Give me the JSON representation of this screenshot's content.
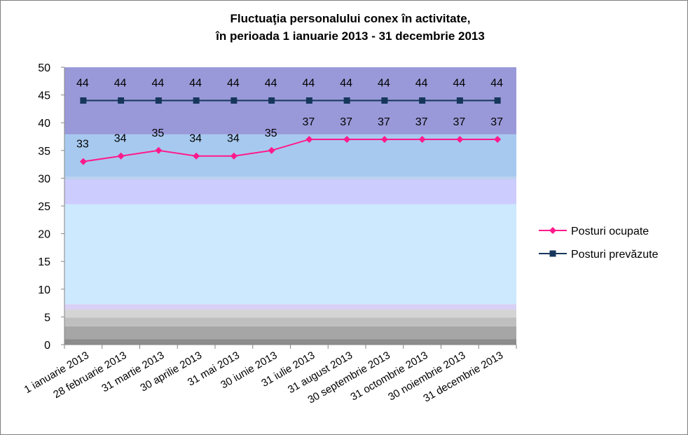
{
  "chart_data": {
    "type": "line",
    "title_line1": "Fluctuaţia personalului conex în activitate,",
    "title_line2": "în perioada 1 ianuarie 2013 - 31 decembrie 2013",
    "categories": [
      "1 ianuarie 2013",
      "28 februarie 2013",
      "31 martie 2013",
      "30 aprilie 2013",
      "31 mai 2013",
      "30 iunie 2013",
      "31 iulie 2013",
      "31 august 2013",
      "30 septembrie 2013",
      "31 octombrie 2013",
      "30 noiembrie 2013",
      "31 decembrie 2013"
    ],
    "series": [
      {
        "name": "Posturi ocupate",
        "values": [
          33,
          34,
          35,
          34,
          34,
          35,
          37,
          37,
          37,
          37,
          37,
          37
        ],
        "color": "#ff1a8c",
        "marker": "diamond"
      },
      {
        "name": "Posturi prevăzute",
        "values": [
          44,
          44,
          44,
          44,
          44,
          44,
          44,
          44,
          44,
          44,
          44,
          44
        ],
        "color": "#16365c",
        "marker": "square"
      }
    ],
    "ylim": [
      0,
      50
    ],
    "yticks": [
      0,
      5,
      10,
      15,
      20,
      25,
      30,
      35,
      40,
      45,
      50
    ],
    "grid": false,
    "data_labels": true,
    "legend_position": "right",
    "background_bands": [
      {
        "from": 0,
        "to": 1,
        "color": "#8c8c8c"
      },
      {
        "from": 1,
        "to": 3.3,
        "color": "#a6a6a6"
      },
      {
        "from": 3.3,
        "to": 4.9,
        "color": "#bfbfbf"
      },
      {
        "from": 4.9,
        "to": 6.3,
        "color": "#d4d4d4"
      },
      {
        "from": 6.3,
        "to": 7.3,
        "color": "#d9d0f5"
      },
      {
        "from": 7.3,
        "to": 25.3,
        "color": "#cce9fd"
      },
      {
        "from": 25.3,
        "to": 29.8,
        "color": "#ccccff"
      },
      {
        "from": 29.8,
        "to": 30.3,
        "color": "#bcd2f0"
      },
      {
        "from": 30.3,
        "to": 37.9,
        "color": "#a7c9ef"
      },
      {
        "from": 37.9,
        "to": 50,
        "color": "#9999d9"
      }
    ]
  }
}
